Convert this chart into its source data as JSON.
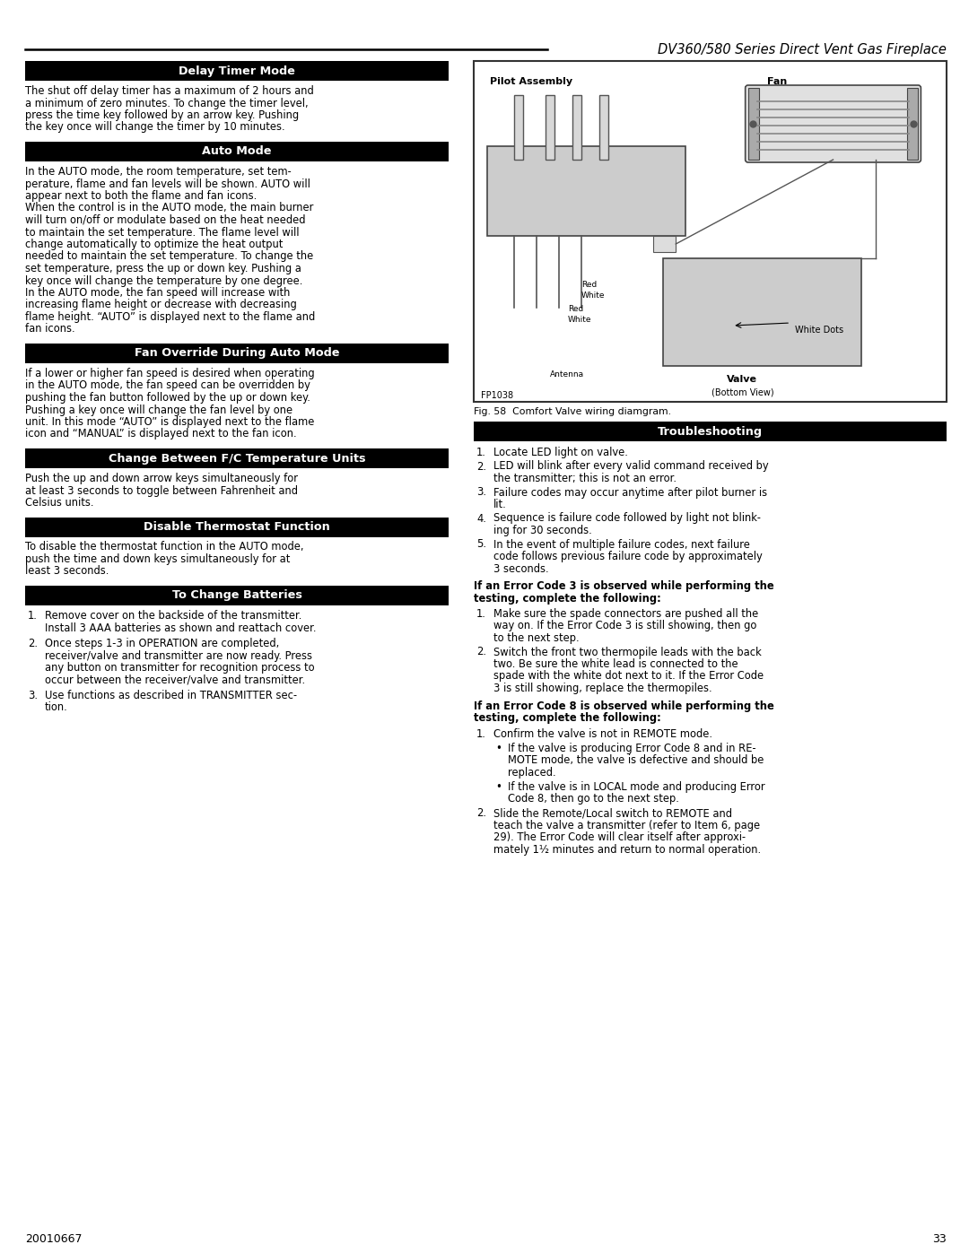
{
  "page_title": "DV360/580 Series Direct Vent Gas Fireplace",
  "page_number": "33",
  "doc_number": "20010667",
  "background_color": "#ffffff",
  "header_bg": "#000000",
  "header_text_color": "#ffffff",
  "body_text_color": "#000000",
  "fig_caption": "Fig. 58  Comfort Valve wiring diamgram.",
  "sections_left": [
    {
      "type": "header",
      "text": "Delay Timer Mode"
    },
    {
      "type": "body",
      "text": "The shut off delay timer has a maximum of 2 hours and\na minimum of zero minutes. To change the timer level,\npress the time key followed by an arrow key. Pushing\nthe key once will change the timer by 10 minutes."
    },
    {
      "type": "header",
      "text": "Auto Mode"
    },
    {
      "type": "body",
      "text": "In the AUTO mode, the room temperature, set tem-\nperature, flame and fan levels will be shown. AUTO will\nappear next to both the flame and fan icons.\nWhen the control is in the AUTO mode, the main burner\nwill turn on/off or modulate based on the heat needed\nto maintain the set temperature. The flame level will\nchange automatically to optimize the heat output\nneeded to maintain the set temperature. To change the\nset temperature, press the up or down key. Pushing a\nkey once will change the temperature by one degree.\nIn the AUTO mode, the fan speed will increase with\nincreasing flame height or decrease with decreasing\nflame height. “AUTO” is displayed next to the flame and\nfan icons."
    },
    {
      "type": "header",
      "text": "Fan Override During Auto Mode"
    },
    {
      "type": "body",
      "text": "If a lower or higher fan speed is desired when operating\nin the AUTO mode, the fan speed can be overridden by\npushing the fan button followed by the up or down key.\nPushing a key once will change the fan level by one\nunit. In this mode “AUTO” is displayed next to the flame\nicon and “MANUAL” is displayed next to the fan icon."
    },
    {
      "type": "header",
      "text": "Change Between F/C Temperature Units"
    },
    {
      "type": "body",
      "text": "Push the up and down arrow keys simultaneously for\nat least 3 seconds to toggle between Fahrenheit and\nCelsius units."
    },
    {
      "type": "header",
      "text": "Disable Thermostat Function"
    },
    {
      "type": "body",
      "text": "To disable the thermostat function in the AUTO mode,\npush the time and down keys simultaneously for at\nleast 3 seconds."
    },
    {
      "type": "header",
      "text": "To Change Batteries"
    },
    {
      "type": "numbered_list",
      "items": [
        "Remove cover on the backside of the transmitter.\nInstall 3 AAA batteries as shown and reattach cover.",
        "Once steps 1-3 in OPERATION are completed,\nreceiver/valve and transmitter are now ready. Press\nany button on transmitter for recognition process to\noccur between the receiver/valve and transmitter.",
        "Use functions as described in TRANSMITTER sec-\ntion."
      ]
    }
  ],
  "troubleshooting_items": [
    "Locate LED light on valve.",
    "LED will blink after every valid command received by\nthe transmitter; this is not an error.",
    "Failure codes may occur anytime after pilot burner is\nlit.",
    "Sequence is failure code followed by light not blink-\ning for 30 seconds.",
    "In the event of multiple failure codes, next failure\ncode follows previous failure code by approximately\n3 seconds."
  ],
  "bold1": "If an Error Code 3 is observed while performing the\ntesting, complete the following:",
  "ec3_items": [
    "Make sure the spade connectors are pushed all the\nway on. If the Error Code 3 is still showing, then go\nto the next step.",
    "Switch the front two thermopile leads with the back\ntwo. Be sure the white lead is connected to the\nspade with the white dot next to it. If the Error Code\n3 is still showing, replace the thermopiles."
  ],
  "bold2": "If an Error Code 8 is observed while performing the\ntesting, complete the following:",
  "ec8_item1": "Confirm the valve is not in REMOTE mode.",
  "bullet_items": [
    "If the valve is producing Error Code 8 and in RE-\nMOTE mode, the valve is defective and should be\nreplaced.",
    "If the valve is in LOCAL mode and producing Error\nCode 8, then go to the next step."
  ],
  "ec8_item2": "Slide the Remote/Local switch to REMOTE and\nteach the valve a transmitter (refer to Item 6, page\n29). The Error Code will clear itself after approxi-\nmately 1½ minutes and return to normal operation."
}
